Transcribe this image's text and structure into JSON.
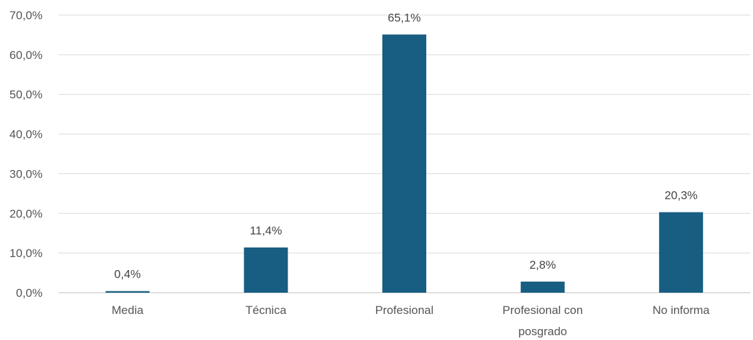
{
  "chart_data": {
    "type": "bar",
    "categories": [
      "Media",
      "Técnica",
      "Profesional",
      "Profesional con posgrado",
      "No informa"
    ],
    "category_lines": [
      [
        "Media"
      ],
      [
        "Técnica"
      ],
      [
        "Profesional"
      ],
      [
        "Profesional con",
        "posgrado"
      ],
      [
        "No informa"
      ]
    ],
    "values": [
      0.4,
      11.4,
      65.1,
      2.8,
      20.3
    ],
    "data_labels": [
      "0,4%",
      "11,4%",
      "65,1%",
      "2,8%",
      "20,3%"
    ],
    "y_ticks": [
      0,
      10,
      20,
      30,
      40,
      50,
      60,
      70
    ],
    "y_tick_labels": [
      "0,0%",
      "10,0%",
      "20,0%",
      "30,0%",
      "40,0%",
      "50,0%",
      "60,0%",
      "70,0%"
    ],
    "ylim": [
      0,
      70
    ],
    "grid": true,
    "title": "",
    "xlabel": "",
    "ylabel": "",
    "bar_color": "#175E82",
    "grid_color": "#D9D9D9",
    "axis_color": "#BFBFBF"
  }
}
